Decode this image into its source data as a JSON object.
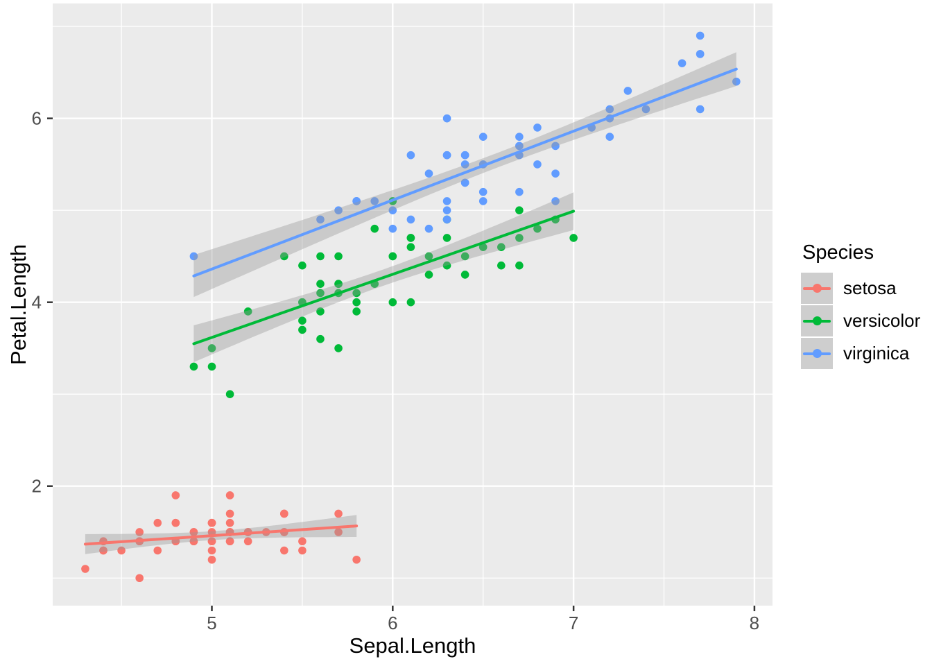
{
  "chart_data": {
    "type": "scatter",
    "xlabel": "Sepal.Length",
    "ylabel": "Petal.Length",
    "xlim": [
      4.12,
      8.1
    ],
    "ylim": [
      0.7,
      7.25
    ],
    "x_ticks": [
      5,
      6,
      7,
      8
    ],
    "x_minor_ticks": [
      4.5,
      5.5,
      6.5,
      7.5
    ],
    "y_ticks": [
      2,
      4,
      6
    ],
    "y_minor_ticks": [
      1,
      3,
      5,
      7
    ],
    "grid": true,
    "legend": {
      "title": "Species",
      "position": "right"
    },
    "smoother": {
      "method": "lm",
      "ci_level": 0.95,
      "t_value": 2.0106,
      "band_fill": "#999999",
      "band_opacity": 0.4,
      "line_width": 4
    },
    "theme": {
      "panel_bg": "#EBEBEB",
      "grid_major_color": "#FFFFFF",
      "grid_minor_color": "#FFFFFF",
      "tick_mark_color": "#333333",
      "tick_label_color": "#4D4D4D",
      "axis_title_color": "#000000",
      "legend_key_bg": "#CECECE",
      "point_radius": 5.8
    },
    "series": [
      {
        "name": "setosa",
        "color": "#F8766D",
        "points": [
          [
            5.1,
            1.4
          ],
          [
            4.9,
            1.4
          ],
          [
            4.7,
            1.3
          ],
          [
            4.6,
            1.5
          ],
          [
            5.0,
            1.4
          ],
          [
            5.4,
            1.7
          ],
          [
            4.6,
            1.4
          ],
          [
            5.0,
            1.5
          ],
          [
            4.4,
            1.4
          ],
          [
            4.9,
            1.5
          ],
          [
            5.4,
            1.5
          ],
          [
            4.8,
            1.6
          ],
          [
            4.8,
            1.4
          ],
          [
            4.3,
            1.1
          ],
          [
            5.8,
            1.2
          ],
          [
            5.7,
            1.5
          ],
          [
            5.4,
            1.3
          ],
          [
            5.1,
            1.4
          ],
          [
            5.7,
            1.7
          ],
          [
            5.1,
            1.5
          ],
          [
            5.4,
            1.7
          ],
          [
            5.1,
            1.5
          ],
          [
            4.6,
            1.0
          ],
          [
            5.1,
            1.7
          ],
          [
            4.8,
            1.9
          ],
          [
            5.0,
            1.6
          ],
          [
            5.0,
            1.6
          ],
          [
            5.2,
            1.5
          ],
          [
            5.2,
            1.4
          ],
          [
            4.7,
            1.6
          ],
          [
            4.8,
            1.6
          ],
          [
            5.4,
            1.5
          ],
          [
            5.2,
            1.5
          ],
          [
            5.5,
            1.4
          ],
          [
            4.9,
            1.5
          ],
          [
            5.0,
            1.2
          ],
          [
            5.5,
            1.3
          ],
          [
            4.9,
            1.4
          ],
          [
            4.4,
            1.3
          ],
          [
            5.1,
            1.5
          ],
          [
            5.0,
            1.3
          ],
          [
            4.5,
            1.3
          ],
          [
            4.4,
            1.3
          ],
          [
            5.0,
            1.6
          ],
          [
            5.1,
            1.9
          ],
          [
            4.8,
            1.4
          ],
          [
            5.1,
            1.6
          ],
          [
            4.6,
            1.4
          ],
          [
            5.3,
            1.5
          ],
          [
            5.0,
            1.4
          ]
        ]
      },
      {
        "name": "versicolor",
        "color": "#00BA38",
        "points": [
          [
            7.0,
            4.7
          ],
          [
            6.4,
            4.5
          ],
          [
            6.9,
            4.9
          ],
          [
            5.5,
            4.0
          ],
          [
            6.5,
            4.6
          ],
          [
            5.7,
            4.5
          ],
          [
            6.3,
            4.7
          ],
          [
            4.9,
            3.3
          ],
          [
            6.6,
            4.6
          ],
          [
            5.2,
            3.9
          ],
          [
            5.0,
            3.5
          ],
          [
            5.9,
            4.2
          ],
          [
            6.0,
            4.0
          ],
          [
            6.1,
            4.7
          ],
          [
            5.6,
            3.6
          ],
          [
            6.7,
            4.4
          ],
          [
            5.6,
            4.5
          ],
          [
            5.8,
            4.1
          ],
          [
            6.2,
            4.5
          ],
          [
            5.6,
            3.9
          ],
          [
            5.9,
            4.8
          ],
          [
            6.1,
            4.0
          ],
          [
            6.3,
            4.9
          ],
          [
            6.1,
            4.7
          ],
          [
            6.4,
            4.3
          ],
          [
            6.6,
            4.4
          ],
          [
            6.8,
            4.8
          ],
          [
            6.7,
            5.0
          ],
          [
            6.0,
            4.5
          ],
          [
            5.7,
            3.5
          ],
          [
            5.5,
            3.8
          ],
          [
            5.5,
            3.7
          ],
          [
            5.8,
            3.9
          ],
          [
            6.0,
            5.1
          ],
          [
            5.4,
            4.5
          ],
          [
            6.0,
            4.5
          ],
          [
            6.7,
            4.7
          ],
          [
            6.3,
            4.4
          ],
          [
            5.6,
            4.1
          ],
          [
            5.5,
            4.0
          ],
          [
            5.5,
            4.4
          ],
          [
            6.1,
            4.6
          ],
          [
            5.8,
            4.0
          ],
          [
            5.0,
            3.3
          ],
          [
            5.6,
            4.2
          ],
          [
            5.7,
            4.2
          ],
          [
            5.7,
            4.2
          ],
          [
            6.2,
            4.3
          ],
          [
            5.1,
            3.0
          ],
          [
            5.7,
            4.1
          ]
        ]
      },
      {
        "name": "virginica",
        "color": "#619CFF",
        "points": [
          [
            6.3,
            6.0
          ],
          [
            5.8,
            5.1
          ],
          [
            7.1,
            5.9
          ],
          [
            6.3,
            5.6
          ],
          [
            6.5,
            5.8
          ],
          [
            7.6,
            6.6
          ],
          [
            4.9,
            4.5
          ],
          [
            7.3,
            6.3
          ],
          [
            6.7,
            5.8
          ],
          [
            7.2,
            6.1
          ],
          [
            6.5,
            5.1
          ],
          [
            6.4,
            5.3
          ],
          [
            6.8,
            5.5
          ],
          [
            5.7,
            5.0
          ],
          [
            5.8,
            5.1
          ],
          [
            6.4,
            5.3
          ],
          [
            6.5,
            5.5
          ],
          [
            7.7,
            6.7
          ],
          [
            7.7,
            6.9
          ],
          [
            6.0,
            5.0
          ],
          [
            6.9,
            5.7
          ],
          [
            5.6,
            4.9
          ],
          [
            7.7,
            6.7
          ],
          [
            6.3,
            4.9
          ],
          [
            6.7,
            5.7
          ],
          [
            7.2,
            6.0
          ],
          [
            6.2,
            4.8
          ],
          [
            6.1,
            4.9
          ],
          [
            6.4,
            5.6
          ],
          [
            7.2,
            5.8
          ],
          [
            7.4,
            6.1
          ],
          [
            7.9,
            6.4
          ],
          [
            6.4,
            5.6
          ],
          [
            6.3,
            5.1
          ],
          [
            6.1,
            5.6
          ],
          [
            7.7,
            6.1
          ],
          [
            6.3,
            5.6
          ],
          [
            6.4,
            5.5
          ],
          [
            6.0,
            4.8
          ],
          [
            6.9,
            5.4
          ],
          [
            6.7,
            5.6
          ],
          [
            6.9,
            5.1
          ],
          [
            5.8,
            5.1
          ],
          [
            6.8,
            5.9
          ],
          [
            6.7,
            5.7
          ],
          [
            6.7,
            5.2
          ],
          [
            6.3,
            5.0
          ],
          [
            6.5,
            5.2
          ],
          [
            6.2,
            5.4
          ],
          [
            5.9,
            5.1
          ]
        ]
      }
    ]
  }
}
